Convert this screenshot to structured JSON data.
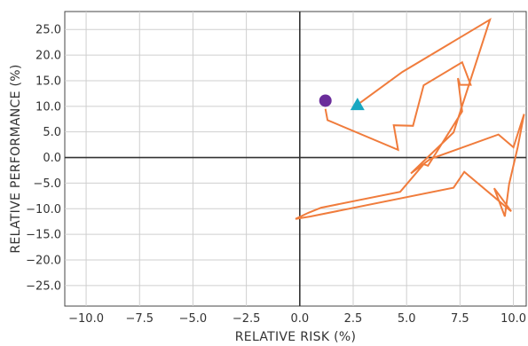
{
  "chart_data": {
    "type": "scatter",
    "xlabel": "RELATIVE RISK (%)",
    "ylabel": "RELATIVE PERFORMANCE (%)",
    "xlim": [
      -11.0,
      10.6
    ],
    "ylim": [
      -29.0,
      28.5
    ],
    "x_ticks": [
      -10.0,
      -7.5,
      -5.0,
      -2.5,
      0.0,
      2.5,
      5.0,
      7.5,
      10.0
    ],
    "x_tick_labels": [
      "−10.0",
      "−7.5",
      "−5.0",
      "−2.5",
      "0.0",
      "2.5",
      "5.0",
      "7.5",
      "10.0"
    ],
    "y_ticks": [
      25,
      20,
      15,
      10,
      5,
      0,
      -5,
      -10,
      -15,
      -20,
      -25
    ],
    "y_tick_labels": [
      "25.0",
      "20.0",
      "15.0",
      "10.0",
      "5.0",
      "0.0",
      "−5.0",
      "−10.0",
      "−15.0",
      "−20.0",
      "−25.0"
    ],
    "grid": true,
    "series": [
      {
        "kind": "line",
        "color": "#f07c3c",
        "points": [
          [
            1.2,
            9.5
          ],
          [
            1.3,
            7.3
          ],
          [
            4.6,
            1.5
          ],
          [
            4.4,
            6.3
          ],
          [
            5.3,
            6.2
          ],
          [
            5.8,
            14.1
          ],
          [
            7.6,
            18.6
          ],
          [
            8.0,
            14.2
          ],
          [
            7.5,
            14.2
          ],
          [
            7.4,
            15.5
          ],
          [
            7.6,
            9.0
          ],
          [
            6.0,
            -1.6
          ],
          [
            5.8,
            -1.3
          ],
          [
            4.7,
            -6.7
          ],
          [
            1.0,
            -9.8
          ],
          [
            0.4,
            -10.8
          ],
          [
            -0.2,
            -12.0
          ],
          [
            0.5,
            -11.5
          ],
          [
            7.2,
            -5.9
          ],
          [
            7.7,
            -2.8
          ],
          [
            9.9,
            -10.5
          ],
          [
            9.1,
            -6.0
          ],
          [
            9.6,
            -11.5
          ],
          [
            9.8,
            -5.2
          ],
          [
            10.2,
            2.0
          ],
          [
            10.5,
            8.5
          ],
          [
            10.0,
            2.0
          ],
          [
            9.3,
            4.5
          ],
          [
            6.1,
            -0.3
          ],
          [
            5.2,
            -3.1
          ],
          [
            7.2,
            4.9
          ],
          [
            8.9,
            26.9
          ],
          [
            4.8,
            16.7
          ],
          [
            2.7,
            10.3
          ]
        ]
      },
      {
        "kind": "marker",
        "shape": "circle",
        "color": "#6a2c9a",
        "points": [
          [
            1.2,
            11.1
          ]
        ]
      },
      {
        "kind": "marker",
        "shape": "triangle",
        "color": "#17a7c1",
        "points": [
          [
            2.7,
            10.3
          ]
        ]
      }
    ]
  }
}
